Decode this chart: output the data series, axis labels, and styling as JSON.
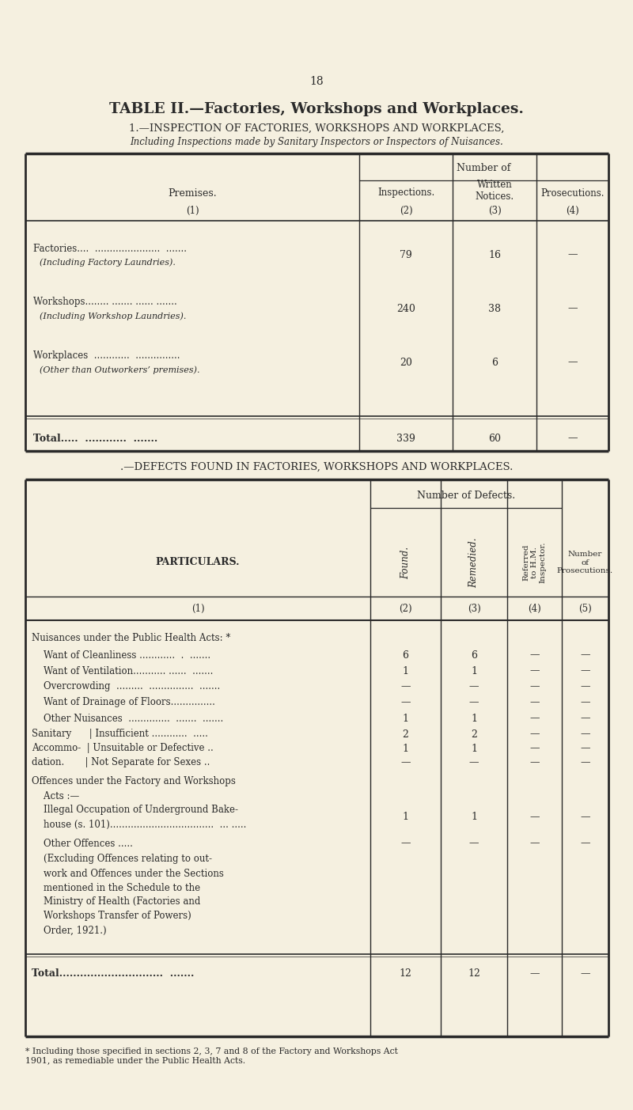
{
  "page_number": "18",
  "main_title": "TABLE II.—Factories, Workshops and Workplaces.",
  "section1_title": "1.—INSPECTION OF FACTORIES, WORKSHOPS AND WORKPLACES,",
  "section1_subtitle": "Including Inspections made by Sanitary Inspectors or Inspectors of Nuisances.",
  "table1_header_top": "Number of",
  "section2_title": ".—DEFECTS FOUND IN FACTORIES, WORKSHOPS AND WORKPLACES.",
  "table2_header_top": "Number of Defects.",
  "footnote": "* Including those specified in sections 2, 3, 7 and 8 of the Factory and Workshops Act\n1901, as remediable under the Public Health Acts.",
  "bg_color": "#f5f0e0",
  "text_color": "#2a2a2a",
  "line_color": "#2a2a2a"
}
